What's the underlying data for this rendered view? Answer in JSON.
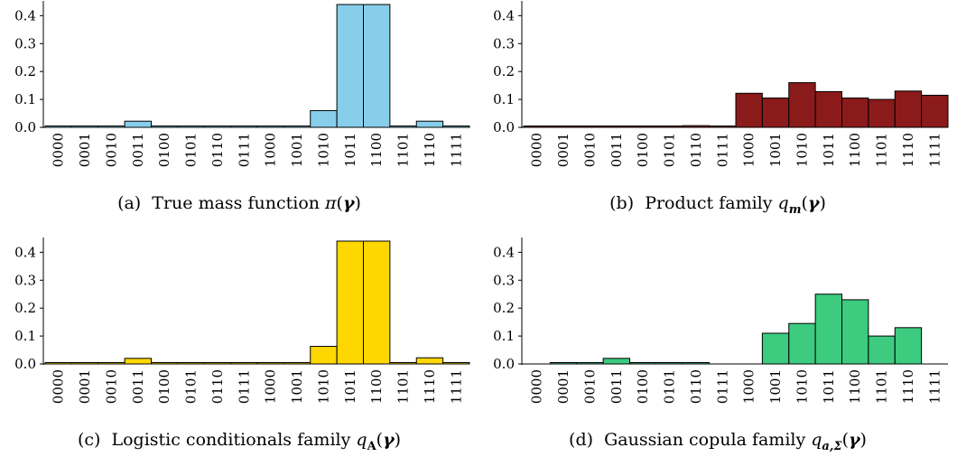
{
  "chart_data": [
    {
      "type": "bar",
      "panel": "a",
      "caption": "(a)  True mass function π(γ)",
      "categories": [
        "0000",
        "0001",
        "0010",
        "0011",
        "0100",
        "0101",
        "0110",
        "0111",
        "1000",
        "1001",
        "1010",
        "1011",
        "1100",
        "1101",
        "1110",
        "1111"
      ],
      "values": [
        0.001,
        0.001,
        0.003,
        0.022,
        0.003,
        0.0005,
        0.0005,
        0.0005,
        0.002,
        0.001,
        0.06,
        0.44,
        0.44,
        0.001,
        0.022,
        0.003
      ],
      "color": "#87CEEB",
      "ylim": [
        0,
        0.44
      ],
      "yticks": [
        "0.0",
        "0.1",
        "0.2",
        "0.3",
        "0.4"
      ]
    },
    {
      "type": "bar",
      "panel": "b",
      "caption": "(b)  Product family q_m(γ)",
      "categories": [
        "0000",
        "0001",
        "0010",
        "0011",
        "0100",
        "0101",
        "0110",
        "0111",
        "1000",
        "1001",
        "1010",
        "1011",
        "1100",
        "1101",
        "1110",
        "1111"
      ],
      "values": [
        0.002,
        0.002,
        0.003,
        0.003,
        0.004,
        0.004,
        0.006,
        0.002,
        0.122,
        0.105,
        0.16,
        0.128,
        0.105,
        0.1,
        0.13,
        0.115
      ],
      "color": "#8B1A1A",
      "ylim": [
        0,
        0.44
      ],
      "yticks": [
        "0.0",
        "0.1",
        "0.2",
        "0.3",
        "0.4"
      ]
    },
    {
      "type": "bar",
      "panel": "c",
      "caption": "(c)  Logistic conditionals family q_A(γ)",
      "categories": [
        "0000",
        "0001",
        "0010",
        "0011",
        "0100",
        "0101",
        "0110",
        "0111",
        "1000",
        "1001",
        "1010",
        "1011",
        "1100",
        "1101",
        "1110",
        "1111"
      ],
      "values": [
        0.001,
        0.001,
        0.003,
        0.02,
        0.003,
        0.0005,
        0.0005,
        0.0005,
        0.002,
        0.001,
        0.063,
        0.44,
        0.44,
        0.001,
        0.022,
        0.003
      ],
      "color": "#FFD700",
      "ylim": [
        0,
        0.44
      ],
      "yticks": [
        "0.0",
        "0.1",
        "0.2",
        "0.3",
        "0.4"
      ]
    },
    {
      "type": "bar",
      "panel": "d",
      "caption": "(d)  Gaussian copula family q_{a,Σ}(γ)",
      "categories": [
        "0000",
        "0001",
        "0010",
        "0011",
        "0100",
        "0101",
        "0110",
        "0111",
        "1000",
        "1001",
        "1010",
        "1011",
        "1100",
        "1101",
        "1110",
        "1111"
      ],
      "values": [
        0.0,
        0.002,
        0.005,
        0.02,
        0.002,
        0.002,
        0.003,
        0.0,
        0.0,
        0.11,
        0.145,
        0.25,
        0.23,
        0.1,
        0.13,
        0.0
      ],
      "color": "#3CCB7F",
      "ylim": [
        0,
        0.44
      ],
      "yticks": [
        "0.0",
        "0.1",
        "0.2",
        "0.3",
        "0.4"
      ]
    }
  ]
}
